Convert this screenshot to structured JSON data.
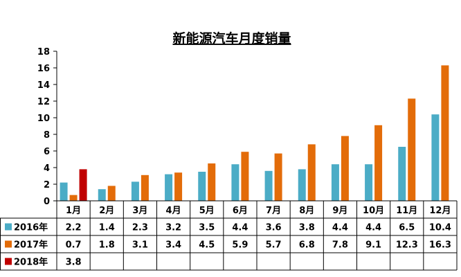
{
  "chart_data": {
    "type": "bar",
    "title": "新能源汽车月度销量",
    "categories": [
      "1月",
      "2月",
      "3月",
      "4月",
      "5月",
      "6月",
      "7月",
      "8月",
      "9月",
      "10月",
      "11月",
      "12月"
    ],
    "series": [
      {
        "name": "2016年",
        "color": "#4bacc6",
        "values": [
          2.2,
          1.4,
          2.3,
          3.2,
          3.5,
          4.4,
          3.6,
          3.8,
          4.4,
          4.4,
          6.5,
          10.4
        ]
      },
      {
        "name": "2017年",
        "color": "#e36c09",
        "values": [
          0.7,
          1.8,
          3.1,
          3.4,
          4.5,
          5.9,
          5.7,
          6.8,
          7.8,
          9.1,
          12.3,
          16.3
        ]
      },
      {
        "name": "2018年",
        "color": "#c00000",
        "values": [
          3.8,
          null,
          null,
          null,
          null,
          null,
          null,
          null,
          null,
          null,
          null,
          null
        ]
      }
    ],
    "ylim": [
      0,
      18
    ],
    "yticks": [
      0,
      2,
      4,
      6,
      8,
      10,
      12,
      14,
      16,
      18
    ],
    "grid": false,
    "data_table": true
  }
}
